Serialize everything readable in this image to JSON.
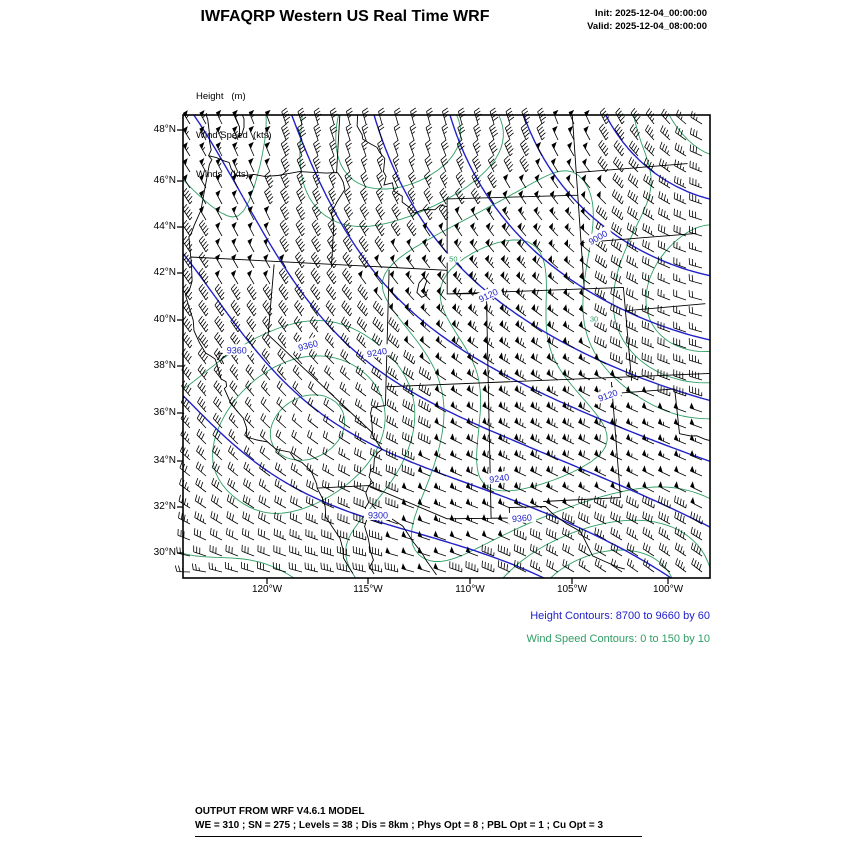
{
  "header": {
    "title": "IWFAQRP Western US Real Time WRF",
    "init": "Init: 2025-12-04_00:00:00",
    "valid": "Valid: 2025-12-04_08:00:00"
  },
  "legend": {
    "lines": [
      "Height   (m)",
      "Wind Speed  (kts)",
      "Winds   (kts)"
    ]
  },
  "captions": {
    "height": "Height Contours: 8700 to 9660 by 60",
    "wind": "Wind Speed Contours: 0 to 150 by 10"
  },
  "footer": {
    "line1": "OUTPUT FROM WRF V4.6.1 MODEL",
    "line2": "WE = 310 ; SN = 275 ; Levels = 38 ; Dis = 8km ; Phys Opt = 8 ; PBL Opt = 1 ; Cu Opt = 3"
  },
  "colors": {
    "height_contour": "#2121c8",
    "wind_speed_contour": "#2f9e64",
    "barb": "#000000",
    "border": "#000000"
  },
  "chart_data": {
    "type": "map-contour",
    "region": "Western US",
    "projection": "lambert-conformal-approx",
    "extent": {
      "lon_min": -124.2,
      "lon_max": -98.0,
      "lat_min": 29.0,
      "lat_max": 48.65
    },
    "lat_tick_labels": [
      "48°N",
      "46°N",
      "44°N",
      "42°N",
      "40°N",
      "38°N",
      "36°N",
      "34°N",
      "32°N",
      "30°N"
    ],
    "lon_tick_labels": [
      "120°W",
      "115°W",
      "110°W",
      "105°W",
      "100°W"
    ],
    "height_contours": {
      "units": "m",
      "min": 8700,
      "max": 9660,
      "interval": 60
    },
    "wind_speed_contours": {
      "units": "kts",
      "min": 0,
      "max": 150,
      "interval": 10
    },
    "winds": {
      "units": "kts",
      "style": "barbs"
    },
    "height_labels": [
      {
        "value": "9000",
        "x": 0.787,
        "y": 0.264,
        "rot": -30
      },
      {
        "value": "9120",
        "x": 0.579,
        "y": 0.389,
        "rot": -25
      },
      {
        "value": "9360",
        "x": 0.102,
        "y": 0.508,
        "rot": 0
      },
      {
        "value": "9360",
        "x": 0.237,
        "y": 0.497,
        "rot": -15
      },
      {
        "value": "9240",
        "x": 0.368,
        "y": 0.512,
        "rot": -10
      },
      {
        "value": "9120",
        "x": 0.806,
        "y": 0.605,
        "rot": -20
      },
      {
        "value": "9240",
        "x": 0.6,
        "y": 0.784,
        "rot": -8
      },
      {
        "value": "9300",
        "x": 0.37,
        "y": 0.864,
        "rot": 0
      },
      {
        "value": "9360",
        "x": 0.643,
        "y": 0.87,
        "rot": -5
      }
    ],
    "speed_labels": [
      {
        "value": "50",
        "x": 0.513,
        "y": 0.31
      },
      {
        "value": "30",
        "x": 0.78,
        "y": 0.44
      }
    ]
  }
}
